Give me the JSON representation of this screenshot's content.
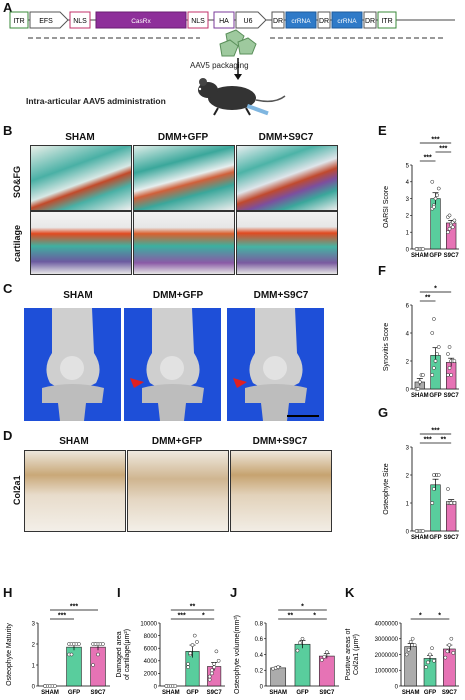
{
  "panels": [
    "A",
    "B",
    "C",
    "D",
    "E",
    "F",
    "G",
    "H",
    "I",
    "J",
    "K"
  ],
  "construct": {
    "elements": [
      "ITR",
      "EFS",
      "NLS",
      "CasRx",
      "NLS",
      "HA",
      "U6",
      "DR",
      "crRNA",
      "DR",
      "crRNA",
      "DR",
      "ITR"
    ]
  },
  "packaging_text": "AAV5 packaging",
  "admin_text": "Intra-articular AAV5 administration",
  "groups": [
    "SHAM",
    "DMM+GFP",
    "DMM+S9C7"
  ],
  "row_labels": {
    "b1": "SO&FG",
    "b2": "cartilage",
    "d": "Col2a1"
  },
  "colors": {
    "sham": "#9e9e9e",
    "gfp": "#3cc48c",
    "s9c7": "#e25aa8",
    "ct_bg": "#1e4fd8"
  },
  "chart_data": [
    {
      "panel": "E",
      "type": "bar",
      "ylabel": "OARSI Score",
      "categories": [
        "SHAM",
        "GFP",
        "S9C7"
      ],
      "values": [
        0,
        3.0,
        1.55
      ],
      "points": [
        [
          0,
          0,
          0,
          0,
          0,
          0
        ],
        [
          2.4,
          2.6,
          3.0,
          3.2,
          3.6,
          4.0,
          2.5
        ],
        [
          1.0,
          1.2,
          1.5,
          1.6,
          1.7,
          1.9,
          2.0,
          1.4,
          1.3
        ]
      ],
      "errors": [
        0,
        0.35,
        0.15
      ],
      "ylim": [
        0,
        5
      ],
      "yticks": [
        0,
        1,
        2,
        3,
        4,
        5
      ],
      "sig": [
        {
          "from": 0,
          "to": 1,
          "label": "***",
          "level": 0
        },
        {
          "from": 1,
          "to": 2,
          "label": "***",
          "level": 1
        },
        {
          "from": 0,
          "to": 2,
          "label": "***",
          "level": 2
        }
      ]
    },
    {
      "panel": "F",
      "type": "bar",
      "ylabel": "Synovitis Score",
      "categories": [
        "SHAM",
        "GFP",
        "S9C7"
      ],
      "values": [
        0.5,
        2.4,
        1.9
      ],
      "points": [
        [
          0,
          0,
          0.5,
          1,
          1
        ],
        [
          1,
          1.5,
          2,
          2.5,
          3,
          4,
          5
        ],
        [
          1,
          1.5,
          2,
          2,
          2,
          2.5,
          3,
          1
        ]
      ],
      "errors": [
        0.25,
        0.55,
        0.3
      ],
      "ylim": [
        0,
        6
      ],
      "yticks": [
        0,
        2,
        4,
        6
      ],
      "sig": [
        {
          "from": 0,
          "to": 1,
          "label": "**",
          "level": 0
        },
        {
          "from": 0,
          "to": 2,
          "label": "*",
          "level": 1
        }
      ]
    },
    {
      "panel": "G",
      "type": "bar",
      "ylabel": "Osteophyte Size",
      "categories": [
        "SHAM",
        "GFP",
        "S9C7"
      ],
      "values": [
        0,
        1.65,
        1.05
      ],
      "points": [
        [
          0,
          0,
          0,
          0,
          0,
          0
        ],
        [
          1,
          1.5,
          2,
          2,
          2,
          1,
          2
        ],
        [
          1,
          1,
          1,
          1,
          1,
          1.5,
          1,
          1
        ]
      ],
      "errors": [
        0,
        0.2,
        0.07
      ],
      "ylim": [
        0,
        3
      ],
      "yticks": [
        0,
        1,
        2,
        3
      ],
      "sig": [
        {
          "from": 0,
          "to": 1,
          "label": "***",
          "level": 0
        },
        {
          "from": 1,
          "to": 2,
          "label": "**",
          "level": 0
        },
        {
          "from": 0,
          "to": 2,
          "label": "***",
          "level": 1
        }
      ]
    },
    {
      "panel": "H",
      "type": "bar",
      "ylabel": "Osteophyte Maturity",
      "categories": [
        "SHAM",
        "GFP",
        "S9C7"
      ],
      "values": [
        0,
        1.85,
        1.85
      ],
      "points": [
        [
          0,
          0,
          0,
          0,
          0,
          0
        ],
        [
          2,
          2,
          2,
          2,
          2,
          1.5,
          1.5
        ],
        [
          2,
          2,
          2,
          2,
          2,
          1,
          2,
          1.5
        ]
      ],
      "errors": [
        0,
        0.15,
        0.15
      ],
      "ylim": [
        0,
        3
      ],
      "yticks": [
        0,
        1,
        2,
        3
      ],
      "sig": [
        {
          "from": 0,
          "to": 1,
          "label": "***",
          "level": 0
        },
        {
          "from": 0,
          "to": 2,
          "label": "***",
          "level": 1
        }
      ]
    },
    {
      "panel": "I",
      "type": "bar",
      "ylabel": "Damaged area of cartilage(μm²)",
      "categories": [
        "SHAM",
        "GFP",
        "S9C7"
      ],
      "values": [
        0,
        5500,
        3100
      ],
      "points": [
        [
          0,
          0,
          0,
          0,
          0,
          0
        ],
        [
          3000,
          5000,
          6500,
          8000,
          7000,
          3500,
          5200
        ],
        [
          1000,
          2000,
          3000,
          5500,
          4000,
          1500,
          2500,
          3500
        ]
      ],
      "errors": [
        0,
        1000,
        650
      ],
      "ylim": [
        0,
        10000
      ],
      "yticks": [
        0,
        2000,
        4000,
        6000,
        8000,
        10000
      ],
      "sig": [
        {
          "from": 0,
          "to": 1,
          "label": "***",
          "level": 0
        },
        {
          "from": 1,
          "to": 2,
          "label": "*",
          "level": 0
        },
        {
          "from": 0,
          "to": 2,
          "label": "**",
          "level": 1
        }
      ]
    },
    {
      "panel": "J",
      "type": "bar",
      "ylabel": "Osteophyte volume(mm³)",
      "categories": [
        "SHAM",
        "GFP",
        "S9C7"
      ],
      "values": [
        0.23,
        0.53,
        0.38
      ],
      "points": [
        [
          0.22,
          0.23,
          0.24
        ],
        [
          0.45,
          0.55,
          0.6
        ],
        [
          0.33,
          0.37,
          0.43
        ]
      ],
      "errors": [
        0.02,
        0.05,
        0.03
      ],
      "ylim": [
        0,
        0.8
      ],
      "yticks": [
        0,
        0.2,
        0.4,
        0.6,
        0.8
      ],
      "sig": [
        {
          "from": 0,
          "to": 1,
          "label": "**",
          "level": 0
        },
        {
          "from": 1,
          "to": 2,
          "label": "*",
          "level": 0
        },
        {
          "from": 0,
          "to": 2,
          "label": "*",
          "level": 1
        }
      ]
    },
    {
      "panel": "K",
      "type": "bar",
      "ylabel": "Positive areas of Col2a1 (μm²)",
      "categories": [
        "SHAM",
        "GFP",
        "S9C7"
      ],
      "values": [
        2500000,
        1750000,
        2350000
      ],
      "points": [
        [
          2000000,
          2300000,
          2800000,
          3000000,
          2600000
        ],
        [
          1200000,
          1500000,
          2000000,
          2400000,
          1600000
        ],
        [
          1800000,
          2200000,
          2600000,
          3000000,
          2100000
        ]
      ],
      "errors": [
        200000,
        200000,
        250000
      ],
      "ylim": [
        0,
        4000000
      ],
      "yticks": [
        0,
        1000000,
        2000000,
        3000000,
        4000000
      ],
      "tickLabels": [
        "0",
        "1000000",
        "2000000",
        "3000000",
        "4000000"
      ],
      "sig": [
        {
          "from": 0,
          "to": 1,
          "label": "*",
          "level": 0
        },
        {
          "from": 1,
          "to": 2,
          "label": "*",
          "level": 0
        }
      ]
    }
  ]
}
